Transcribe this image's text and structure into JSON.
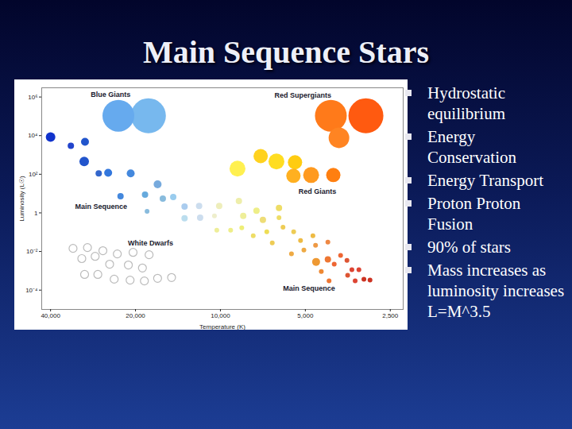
{
  "slide": {
    "title": "Main Sequence Stars",
    "bullets": [
      "Hydrostatic equilibrium",
      "Energy Conservation",
      "Energy Transport",
      "Proton Proton Fusion",
      "90% of stars",
      "Mass increases as luminosity increases L=M^3.5"
    ]
  },
  "chart_data": {
    "type": "scatter",
    "x_label": "Temperature (K)",
    "y_label": "Luminosity (L☉)",
    "log": true,
    "grid": false,
    "xlim": [
      43000,
      2250
    ],
    "ylim": [
      1e-05,
      3000000
    ],
    "xticks": [
      {
        "value": 40000,
        "label": "40,000"
      },
      {
        "value": 20000,
        "label": "20,000"
      },
      {
        "value": 10000,
        "label": "10,000"
      },
      {
        "value": 5000,
        "label": "5,000"
      },
      {
        "value": 2500,
        "label": "2,500"
      }
    ],
    "yticks": [
      {
        "value": 1000000,
        "label": "10⁶"
      },
      {
        "value": 10000,
        "label": "10⁴"
      },
      {
        "value": 100,
        "label": "10²"
      },
      1,
      {
        "value": 0.01,
        "label": "10⁻²"
      },
      {
        "value": 0.0001,
        "label": "10⁻⁴"
      }
    ],
    "series": [
      {
        "marker": "filled",
        "x": [
          23000,
          18000,
          4060,
          3050,
          7200,
          8700,
          6330,
          5440,
          5510,
          4770,
          3800,
          3980,
          40000,
          33900,
          30200,
          30400,
          27000,
          25000,
          20800,
          22600,
          18500,
          16700,
          16000,
          18200,
          14700,
          13400,
          13400,
          11800,
          11900,
          10500,
          10100,
          8600,
          8300,
          7450,
          7070,
          6200,
          6200,
          10300,
          9200,
          8400,
          7650,
          6850,
          6000,
          5500,
          5200,
          4700,
          6550,
          5600,
          5060,
          4600,
          4160,
          4580,
          4160,
          4390,
          3950,
          3750,
          3560,
          3420,
          3230,
          3100,
          2950,
          3330,
          4120,
          3540
        ],
        "values": [
          107000,
          107000,
          107000,
          107000,
          870,
          195,
          457,
          417,
          83,
          91,
          7760,
          91,
          8500,
          3000,
          4800,
          460,
          110,
          120,
          110,
          7.2,
          8.7,
          30,
          5.5,
          1.2,
          6.6,
          2.1,
          0.52,
          0.57,
          2.3,
          0.69,
          2.3,
          4.1,
          0.69,
          1.3,
          0.43,
          1.8,
          0.57,
          0.126,
          0.126,
          0.17,
          0.065,
          0.105,
          0.18,
          0.105,
          0.037,
          0.065,
          0.028,
          0.0075,
          0.012,
          0.021,
          0.031,
          0.0029,
          0.0039,
          0.00093,
          0.0022,
          0.0062,
          0.0035,
          0.00114,
          0.00114,
          0.00037,
          0.00033,
          0.0003,
          0.0003,
          0.00059
        ],
        "sizes": [
          20,
          22,
          20,
          22,
          9,
          10,
          10,
          9,
          9,
          10,
          13,
          9,
          6,
          4,
          5,
          6,
          4,
          5,
          5,
          4,
          4,
          5,
          4,
          3,
          4,
          4,
          4,
          4,
          4,
          3,
          4,
          4,
          4,
          4,
          4,
          4,
          3,
          3,
          3,
          3,
          3,
          3,
          3,
          3,
          3,
          3,
          3,
          3,
          3,
          3,
          3,
          5,
          4,
          3,
          3,
          3,
          3,
          3,
          3,
          3,
          3,
          3,
          3,
          3
        ],
        "colors": [
          "#66aaee",
          "#77b8ee",
          "#ff7a1a",
          "#ff5a10",
          "#ffd21f",
          "#fff050",
          "#ffdd22",
          "#ffcc11",
          "#ffb020",
          "#ff9a1f",
          "#ff8422",
          "#ff7f10",
          "#1133cc",
          "#2244cc",
          "#2255cc",
          "#2255cc",
          "#3366cc",
          "#3377dd",
          "#4488dd",
          "#4488dd",
          "#66aadd",
          "#77aadd",
          "#88bbdd",
          "#88bbdd",
          "#99ccee",
          "#aaccee",
          "#bbddee",
          "#ccddee",
          "#ccddee",
          "#eeeecc",
          "#eeeebb",
          "#eeeeaa",
          "#eeee99",
          "#eeee88",
          "#eedd77",
          "#eedd66",
          "#eedd66",
          "#eeee99",
          "#eeee88",
          "#eeee77",
          "#eedd66",
          "#eedd55",
          "#eecc55",
          "#eecc55",
          "#eebb44",
          "#eebb44",
          "#eecc55",
          "#eeaa44",
          "#eeaa44",
          "#ee9944",
          "#ee8844",
          "#ee9933",
          "#ee7733",
          "#ee8833",
          "#ee6633",
          "#ee6633",
          "#dd5533",
          "#dd4433",
          "#dd4433",
          "#cc3322",
          "#cc3322",
          "#dd4433",
          "#ee7733",
          "#dd5533"
        ]
      },
      {
        "marker": "hollow",
        "color": "#bbbbbb",
        "x": [
          33300,
          29600,
          26100,
          23200,
          20400,
          17900,
          31000,
          27800,
          24700,
          21200,
          18900,
          30300,
          27200,
          23800,
          20900,
          18600,
          16700,
          14900
        ],
        "values": [
          0.0145,
          0.016,
          0.011,
          0.0075,
          0.009,
          0.0068,
          0.0043,
          0.0056,
          0.0022,
          0.002,
          0.0014,
          0.00065,
          0.00065,
          0.00037,
          0.00033,
          0.0003,
          0.00041,
          0.00045
        ],
        "sizes": [
          5,
          5,
          5,
          5,
          5,
          5,
          5,
          5,
          5,
          5,
          5,
          5,
          5,
          5,
          5,
          5,
          5,
          5
        ]
      }
    ],
    "annotations": [
      {
        "text": "Blue Giants",
        "x": 24500,
        "y": 1350000
      },
      {
        "text": "Red Supergiants",
        "x": 5100,
        "y": 1230000
      },
      {
        "text": "Red Giants",
        "x": 4530,
        "y": 12.6
      },
      {
        "text": "Main Sequence",
        "x": 26500,
        "y": 2.1
      },
      {
        "text": "White Dwarfs",
        "x": 17700,
        "y": 0.028
      },
      {
        "text": "Main Sequence",
        "x": 4850,
        "y": 0.00012
      }
    ]
  }
}
